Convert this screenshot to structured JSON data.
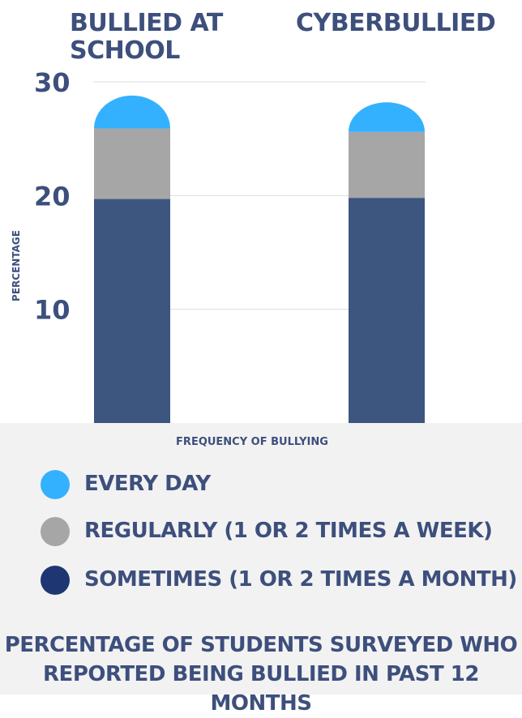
{
  "chart_data": {
    "type": "bar",
    "stacked": true,
    "categories": [
      "BULLIED AT SCHOOL",
      "CYBERBULLIED"
    ],
    "series": [
      {
        "name": "SOMETIMES (1 OR 2 TIMES A MONTH)",
        "values": [
          19.7,
          19.8
        ],
        "color": "#3d5680"
      },
      {
        "name": "REGULARLY (1 OR 2 TIMES A WEEK)",
        "values": [
          6.2,
          5.8
        ],
        "color": "#a6a6a6"
      },
      {
        "name": "EVERY DAY",
        "values": [
          2.9,
          2.6
        ],
        "color": "#33b1ff"
      }
    ],
    "yticks": [
      "10",
      "20",
      "30"
    ],
    "ylim": [
      0,
      30
    ],
    "ylabel": "PERCENTAGE",
    "xlabel": "FREQUENCY OF BULLYING",
    "title": "PERCENTAGE OF STUDENTS SURVEYED WHO REPORTED BEING BULLIED IN PAST 12 MONTHS",
    "grid": true,
    "legend_placement": "bottom"
  },
  "legend": [
    {
      "label": "EVERY DAY",
      "color": "#33b1ff"
    },
    {
      "label": "REGULARLY (1 OR 2 TIMES A WEEK)",
      "color": "#a6a6a6"
    },
    {
      "label": "SOMETIMES (1 OR 2 TIMES A MONTH)",
      "color": "#1e3672"
    }
  ],
  "caption": {
    "line1": "PERCENTAGE OF STUDENTS SURVEYED WHO",
    "line2": "REPORTED BEING BULLIED IN PAST 12 MONTHS"
  }
}
